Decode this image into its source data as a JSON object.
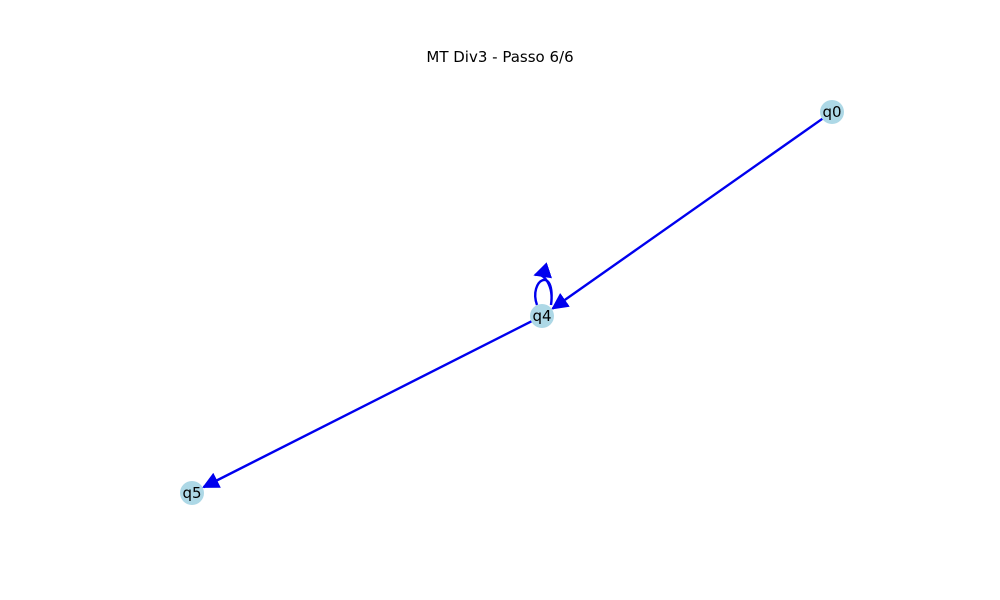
{
  "title": "MT Div3 - Passo 6/6",
  "colors": {
    "node_fill": "#add8e6",
    "edge": "#0000ee",
    "background": "#ffffff",
    "text": "#000000"
  },
  "nodes": [
    {
      "id": "q0",
      "label": "q0"
    },
    {
      "id": "q4",
      "label": "q4"
    },
    {
      "id": "q5",
      "label": "q5"
    }
  ],
  "edges": [
    {
      "from": "q0",
      "to": "q4"
    },
    {
      "from": "q4",
      "to": "q4"
    },
    {
      "from": "q4",
      "to": "q5"
    }
  ]
}
